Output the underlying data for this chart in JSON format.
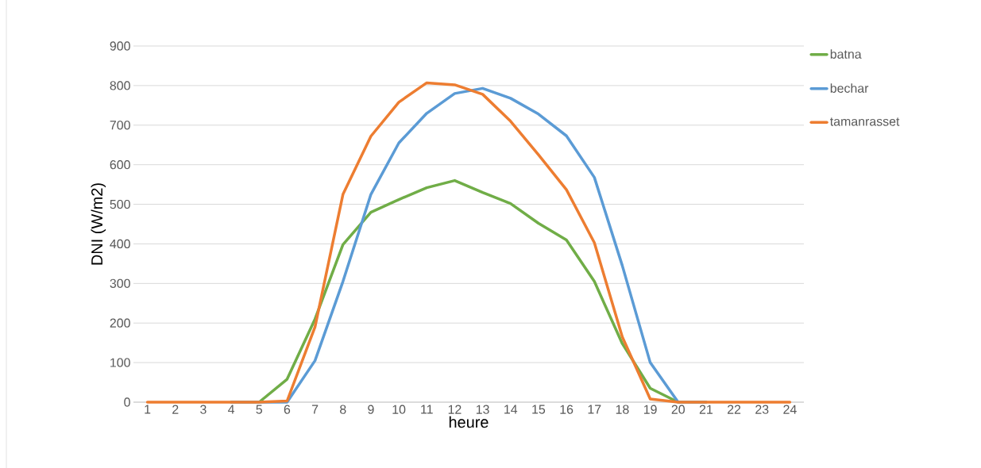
{
  "chart_data": {
    "type": "line",
    "xlabel": "heure",
    "ylabel": "DNI (W/m2)",
    "categories": [
      "1",
      "2",
      "3",
      "4",
      "5",
      "6",
      "7",
      "8",
      "9",
      "10",
      "11",
      "12",
      "13",
      "14",
      "15",
      "16",
      "17",
      "18",
      "19",
      "20",
      "21",
      "22",
      "23",
      "24"
    ],
    "series": [
      {
        "name": "batna",
        "color": "#70ad47",
        "values": [
          null,
          null,
          null,
          0,
          0,
          58,
          210,
          398,
          480,
          512,
          542,
          560,
          530,
          502,
          452,
          410,
          305,
          148,
          35,
          0,
          0,
          null,
          null,
          null
        ]
      },
      {
        "name": "bechar",
        "color": "#5b9bd5",
        "values": [
          null,
          null,
          null,
          0,
          0,
          0,
          105,
          305,
          525,
          655,
          730,
          780,
          793,
          768,
          728,
          673,
          568,
          345,
          100,
          0,
          0,
          null,
          null,
          null
        ]
      },
      {
        "name": "tamanrasset",
        "color": "#ed7d31",
        "values": [
          0,
          0,
          0,
          0,
          0,
          3,
          190,
          525,
          672,
          758,
          807,
          802,
          778,
          710,
          625,
          537,
          403,
          165,
          8,
          0,
          0,
          0,
          0,
          0
        ]
      }
    ],
    "ylim": [
      0,
      900
    ],
    "yticks": [
      0,
      100,
      200,
      300,
      400,
      500,
      600,
      700,
      800,
      900
    ],
    "grid": "y",
    "legend": "right"
  }
}
